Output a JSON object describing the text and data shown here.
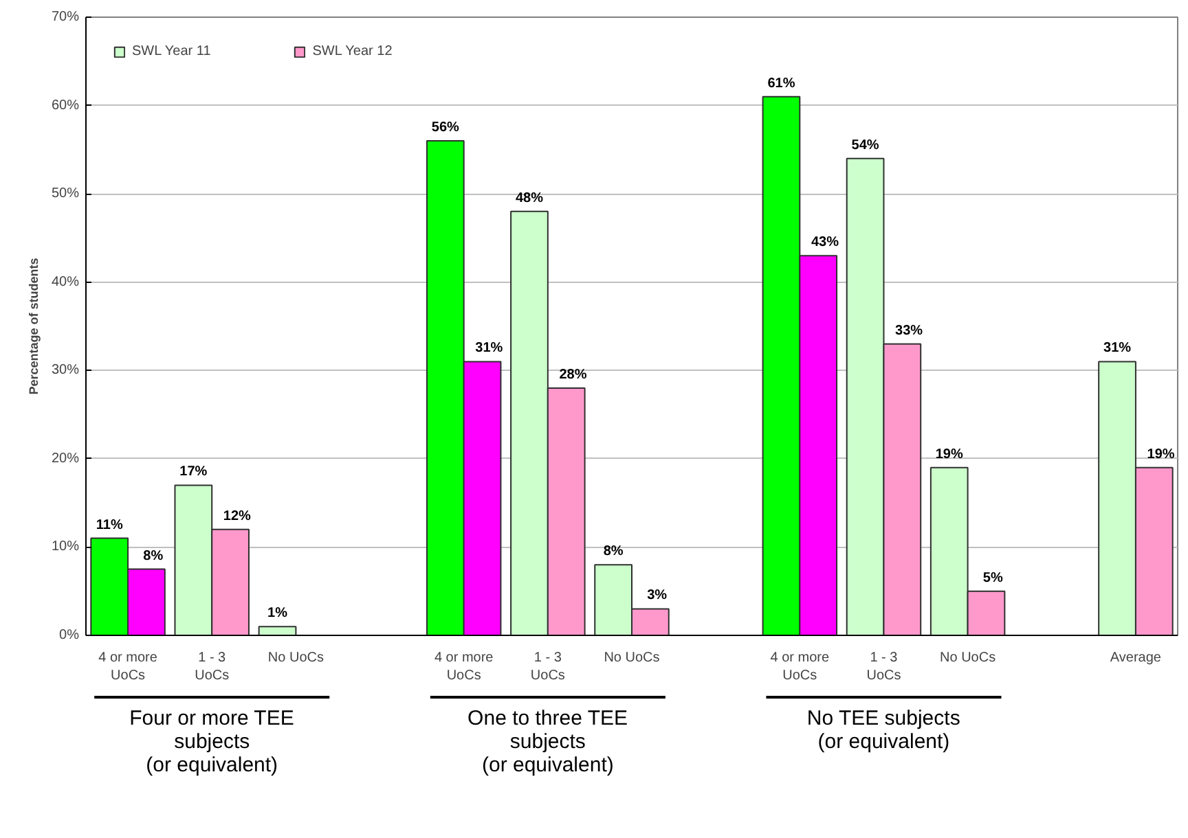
{
  "chart_data": {
    "type": "bar",
    "ylabel": "Percentage of students",
    "categories": [
      "4 or more\nUoCs",
      "1 - 3\nUoCs",
      "No UoCs",
      null,
      "4 or more\nUoCs",
      "1 - 3\nUoCs",
      "No UoCs",
      null,
      "4 or more\nUoCs",
      "1 - 3\nUoCs",
      "No UoCs",
      null,
      "Average"
    ],
    "series": [
      {
        "name": "SWL Year 11",
        "color": "#ccffcc",
        "colors": [
          "#00ff00",
          "#ccffcc",
          "#ccffcc",
          null,
          "#00ff00",
          "#ccffcc",
          "#ccffcc",
          null,
          "#00ff00",
          "#ccffcc",
          "#ccffcc",
          null,
          "#ccffcc"
        ],
        "values": [
          11,
          17,
          1,
          null,
          56,
          48,
          8,
          null,
          61,
          54,
          19,
          null,
          31
        ],
        "value_labels": [
          "11%",
          "17%",
          "1%",
          null,
          "56%",
          "48%",
          "8%",
          null,
          "61%",
          "54%",
          "19%",
          null,
          "31%"
        ]
      },
      {
        "name": "SWL Year 12",
        "color": "#ff99cc",
        "colors": [
          "#ff00ff",
          "#ff99cc",
          "#ff99cc",
          null,
          "#ff00ff",
          "#ff99cc",
          "#ff99cc",
          null,
          "#ff00ff",
          "#ff99cc",
          "#ff99cc",
          null,
          "#ff99cc"
        ],
        "values": [
          7.5,
          12,
          null,
          null,
          31,
          28,
          3,
          null,
          43,
          33,
          5,
          null,
          19
        ],
        "value_labels": [
          "8%",
          "12%",
          null,
          null,
          "31%",
          "28%",
          "3%",
          null,
          "43%",
          "33%",
          "5%",
          null,
          "19%"
        ]
      }
    ],
    "ylim": [
      0,
      70
    ],
    "yticks": [
      {
        "value": 0,
        "label": "0%"
      },
      {
        "value": 10,
        "label": "10%"
      },
      {
        "value": 20,
        "label": "20%"
      },
      {
        "value": 30,
        "label": "30%"
      },
      {
        "value": 40,
        "label": "40%"
      },
      {
        "value": 50,
        "label": "50%"
      },
      {
        "value": 60,
        "label": "60%"
      },
      {
        "value": 70,
        "label": "70%"
      }
    ],
    "grid": "y",
    "legend": "top left",
    "annotations": [
      "Four or more TEE\nsubjects\n(or equivalent)",
      "One to three TEE\nsubjects\n(or equivalent)",
      "No TEE subjects\n(or equivalent)"
    ]
  }
}
